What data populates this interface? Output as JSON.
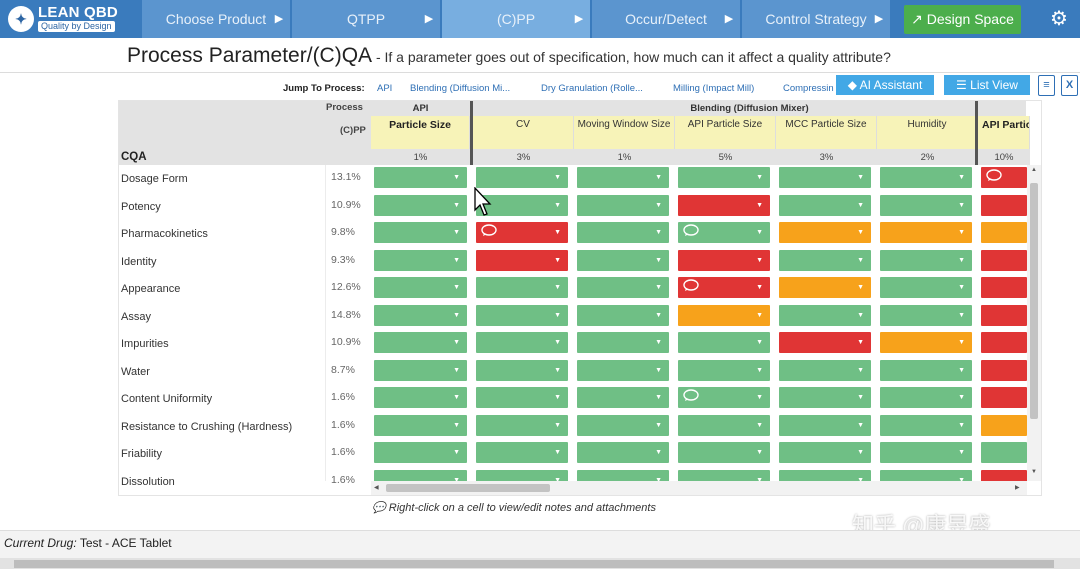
{
  "app": {
    "logo_title": "LEAN QBD",
    "logo_subtitle": "Quality by Design",
    "logo_icon": "dna-icon"
  },
  "nav": {
    "tabs": [
      {
        "label": "Choose Product"
      },
      {
        "label": "QTPP"
      },
      {
        "label": "(C)PP"
      },
      {
        "label": "Occur/Detect"
      },
      {
        "label": "Control Strategy"
      }
    ],
    "arrow": "▶",
    "design_space": "Design Space",
    "design_space_icon": "↗",
    "settings_icon": "⚙"
  },
  "page": {
    "title": "Process Parameter/(C)QA",
    "question": " - If a parameter goes out of specification, how much can it affect a quality attribute?"
  },
  "jump": {
    "label": "Jump To Process:",
    "links": [
      "API",
      "Blending (Diffusion Mi...",
      "Dry Granulation (Rolle...",
      "Milling (Impact Mill)",
      "Compressin"
    ],
    "ai_assistant": "AI Assistant",
    "ai_icon": "◆",
    "list_view": "List View",
    "list_icon": "☰"
  },
  "grid": {
    "process_label": "Process",
    "cpp_label": "(C)PP",
    "cqa_label": "CQA",
    "groups": [
      "API",
      "Blending (Diffusion Mixer)"
    ],
    "params": [
      {
        "name": "Particle Size",
        "pct": "1%"
      },
      {
        "name": "CV",
        "pct": "3%"
      },
      {
        "name": "Moving Window Size",
        "pct": "1%"
      },
      {
        "name": "API Particle Size",
        "pct": "5%"
      },
      {
        "name": "MCC Particle Size",
        "pct": "3%"
      },
      {
        "name": "Humidity",
        "pct": "2%"
      },
      {
        "name": "API Particle Size",
        "pct": "10%"
      }
    ],
    "dd_icon": "▼",
    "note_icon": "💬",
    "rows": [
      {
        "name": "Dosage Form",
        "imp": "13.1%"
      },
      {
        "name": "Potency",
        "imp": "10.9%"
      },
      {
        "name": "Pharmacokinetics",
        "imp": "9.8%"
      },
      {
        "name": "Identity",
        "imp": "9.3%"
      },
      {
        "name": "Appearance",
        "imp": "12.6%"
      },
      {
        "name": "Assay",
        "imp": "14.8%"
      },
      {
        "name": "Impurities",
        "imp": "10.9%"
      },
      {
        "name": "Water",
        "imp": "8.7%"
      },
      {
        "name": "Content Uniformity",
        "imp": "1.6%"
      },
      {
        "name": "Resistance to Crushing (Hardness)",
        "imp": "1.6%"
      },
      {
        "name": "Friability",
        "imp": "1.6%"
      },
      {
        "name": "Dissolution",
        "imp": "1.6%"
      }
    ],
    "ratings": [
      [
        "g",
        "g",
        "g",
        "g",
        "g",
        "g",
        "r"
      ],
      [
        "g",
        "g",
        "g",
        "r",
        "g",
        "g",
        "r"
      ],
      [
        "g",
        "r",
        "g",
        "g",
        "o",
        "o",
        "o"
      ],
      [
        "g",
        "r",
        "g",
        "r",
        "g",
        "g",
        "r"
      ],
      [
        "g",
        "g",
        "g",
        "r",
        "o",
        "g",
        "r"
      ],
      [
        "g",
        "g",
        "g",
        "o",
        "g",
        "g",
        "r"
      ],
      [
        "g",
        "g",
        "g",
        "g",
        "r",
        "o",
        "r"
      ],
      [
        "g",
        "g",
        "g",
        "g",
        "g",
        "g",
        "r"
      ],
      [
        "g",
        "g",
        "g",
        "g",
        "g",
        "g",
        "r"
      ],
      [
        "g",
        "g",
        "g",
        "g",
        "g",
        "g",
        "o"
      ],
      [
        "g",
        "g",
        "g",
        "g",
        "g",
        "g",
        "g"
      ],
      [
        "g",
        "g",
        "g",
        "g",
        "g",
        "g",
        "r"
      ]
    ],
    "notes": [
      [
        0,
        6
      ],
      [
        2,
        1
      ],
      [
        2,
        3
      ],
      [
        4,
        3
      ],
      [
        8,
        3
      ]
    ],
    "colors": {
      "green": "#6fbf85",
      "red": "#e03535",
      "orange": "#f7a21b"
    }
  },
  "hint": "Right-click on a cell to view/edit notes and attachments",
  "hint_icon": "💬",
  "footer": {
    "label": "Current Drug:",
    "value": " Test - ACE Tablet"
  },
  "watermark": "知乎 @康昱盛"
}
